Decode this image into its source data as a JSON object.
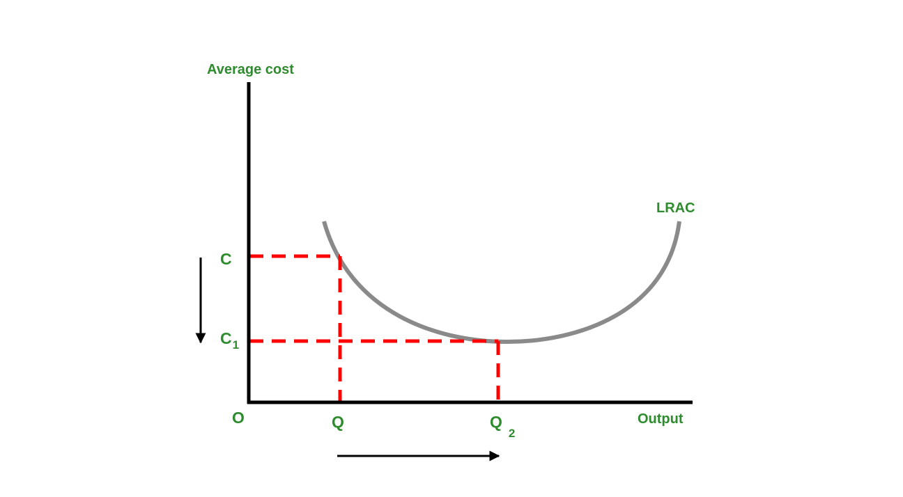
{
  "diagram": {
    "y_axis_label": "Average cost",
    "x_axis_label": "Output",
    "origin_label": "O",
    "curve_label": "LRAC",
    "cost_labels": {
      "c": "C",
      "c1_base": "C",
      "c1_sub": "1"
    },
    "output_labels": {
      "q": "Q",
      "q2_base": "Q",
      "q2_sub": "2"
    },
    "arrows": {
      "cost_direction": "down",
      "output_direction": "right"
    },
    "colors": {
      "label": "#2e8b2e",
      "axes": "#000000",
      "curve": "#8a8a8a",
      "guides": "#ff0000",
      "arrows": "#000000"
    }
  }
}
